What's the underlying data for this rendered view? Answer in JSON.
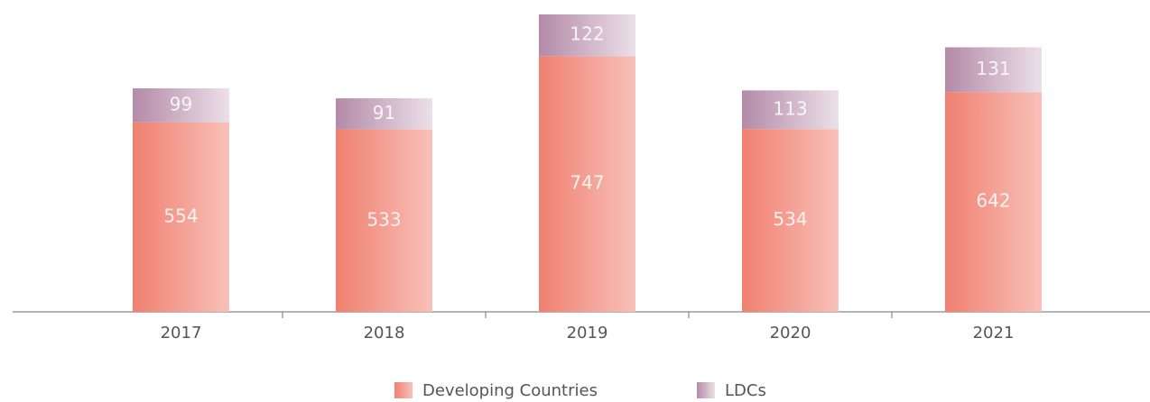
{
  "chart_data": {
    "type": "stacked_bar",
    "categories": [
      "2017",
      "2018",
      "2019",
      "2020",
      "2021"
    ],
    "series": [
      {
        "name": "Developing Countries",
        "color": "#f08070",
        "values": [
          554,
          533,
          747,
          534,
          642
        ]
      },
      {
        "name": "LDCs",
        "color": "#b48aa8",
        "values": [
          99,
          91,
          122,
          113,
          131
        ]
      }
    ],
    "legend": "bottom"
  }
}
